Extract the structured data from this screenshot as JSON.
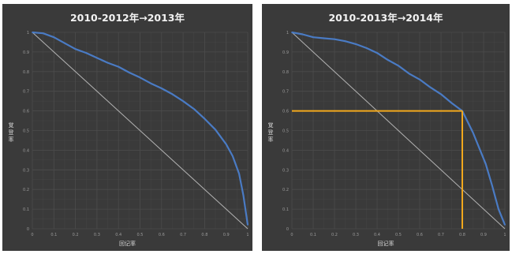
{
  "charts": [
    {
      "title": "2010-2012年→2013年",
      "xlabel": "回记率",
      "ylabel": "覚登率"
    },
    {
      "title": "2010-2013年→2014年",
      "xlabel": "回记率",
      "ylabel": "覚登率"
    }
  ],
  "colors": {
    "panel_bg": "#3a3a3a",
    "grid": "#4c4c4c",
    "curve": "#4a7bc4",
    "diagonal": "#b3b3b3",
    "highlight": "#f2a81d",
    "tick": "#9a9a9a"
  },
  "chart_data": [
    {
      "type": "line",
      "title": "2010-2012年→2013年",
      "xlabel": "回记率",
      "ylabel": "覚登率",
      "xlim": [
        0,
        1
      ],
      "ylim": [
        0,
        1
      ],
      "xticks": [
        "0",
        "0.1",
        "0.2",
        "0.3",
        "0.4",
        "0.5",
        "0.6",
        "0.7",
        "0.8",
        "0.9",
        "1"
      ],
      "yticks": [
        "0",
        "0.1",
        "0.2",
        "0.3",
        "0.4",
        "0.5",
        "0.6",
        "0.7",
        "0.8",
        "0.9",
        "1"
      ],
      "grid": true,
      "series": [
        {
          "x": [
            0,
            0.05,
            0.1,
            0.15,
            0.2,
            0.25,
            0.3,
            0.35,
            0.4,
            0.45,
            0.5,
            0.55,
            0.6,
            0.65,
            0.7,
            0.75,
            0.8,
            0.85,
            0.9,
            0.93,
            0.96,
            0.98,
            1.0
          ],
          "y": [
            1.0,
            0.995,
            0.975,
            0.945,
            0.915,
            0.895,
            0.87,
            0.845,
            0.825,
            0.795,
            0.77,
            0.74,
            0.715,
            0.685,
            0.65,
            0.61,
            0.56,
            0.505,
            0.43,
            0.37,
            0.28,
            0.17,
            0.02
          ]
        },
        {
          "x": [
            0,
            1
          ],
          "y": [
            1,
            0
          ]
        }
      ]
    },
    {
      "type": "line",
      "title": "2010-2013年→2014年",
      "xlabel": "回记率",
      "ylabel": "覚登率",
      "xlim": [
        0,
        1
      ],
      "ylim": [
        0,
        1
      ],
      "xticks": [
        "0",
        "0.1",
        "0.2",
        "0.3",
        "0.4",
        "0.5",
        "0.6",
        "0.7",
        "0.8",
        "0.9",
        "1"
      ],
      "yticks": [
        "0",
        "0.1",
        "0.2",
        "0.3",
        "0.4",
        "0.5",
        "0.6",
        "0.7",
        "0.8",
        "0.9",
        "1"
      ],
      "grid": true,
      "series": [
        {
          "x": [
            0,
            0.05,
            0.1,
            0.15,
            0.2,
            0.25,
            0.3,
            0.35,
            0.4,
            0.45,
            0.5,
            0.55,
            0.6,
            0.65,
            0.7,
            0.75,
            0.8,
            0.85,
            0.88,
            0.91,
            0.94,
            0.97,
            1.0
          ],
          "y": [
            1.0,
            0.99,
            0.975,
            0.97,
            0.965,
            0.955,
            0.94,
            0.92,
            0.895,
            0.86,
            0.83,
            0.79,
            0.76,
            0.72,
            0.685,
            0.64,
            0.6,
            0.49,
            0.41,
            0.33,
            0.22,
            0.1,
            0.02
          ]
        },
        {
          "x": [
            0,
            1
          ],
          "y": [
            1,
            0
          ]
        }
      ],
      "highlight": {
        "x": 0.8,
        "y": 0.6
      }
    }
  ]
}
